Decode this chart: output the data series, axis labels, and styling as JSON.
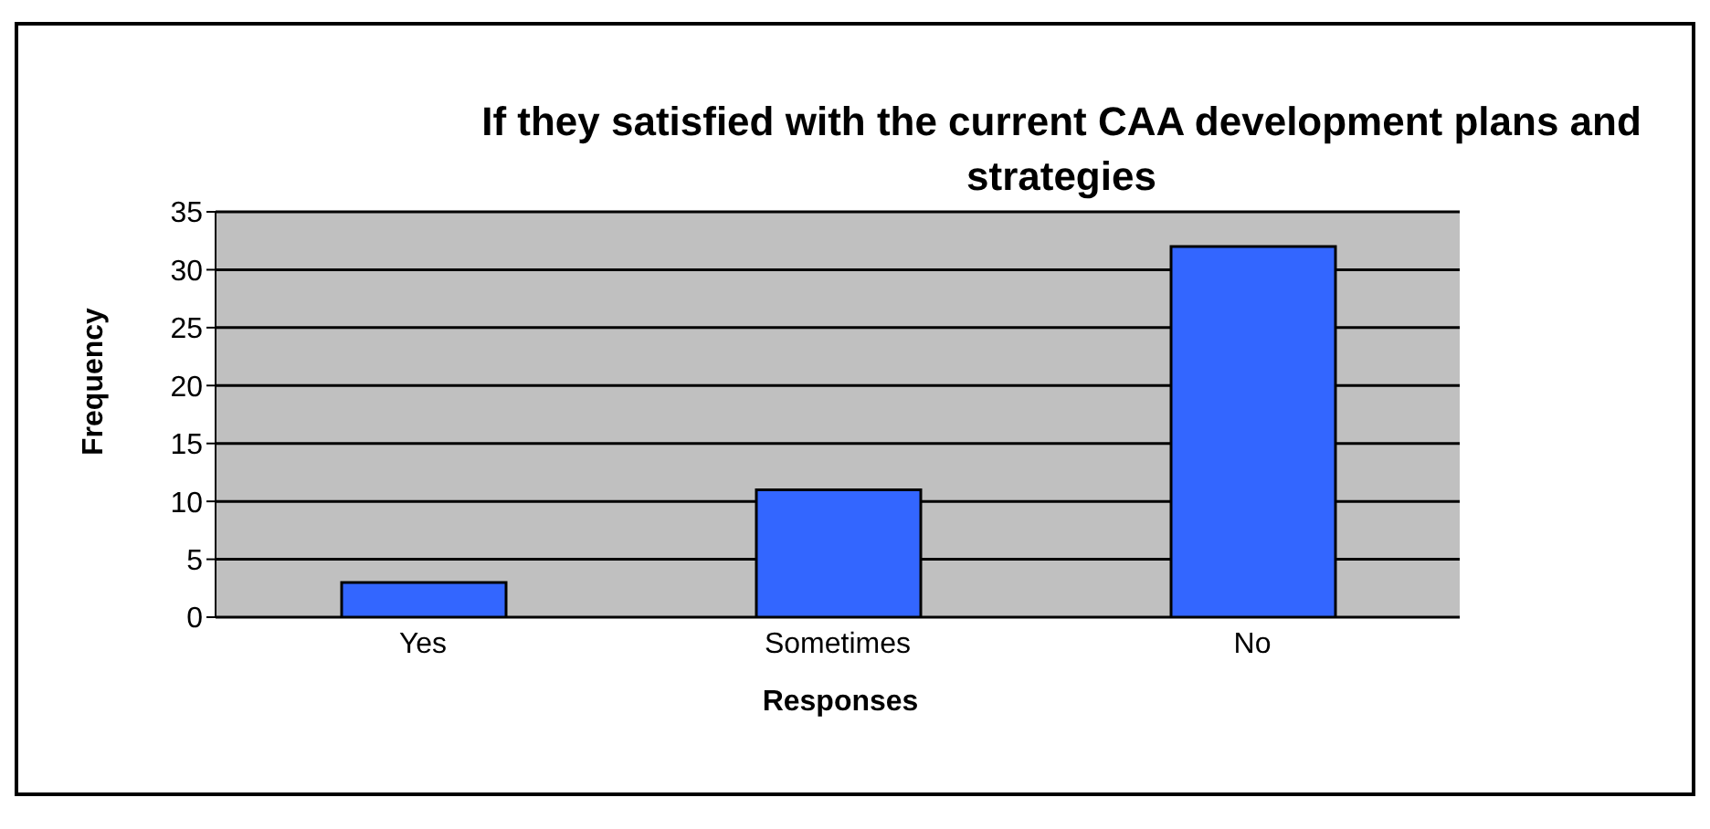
{
  "chart_data": {
    "type": "bar",
    "title": "If they satisfied with the current CAA development plans and strategies",
    "xlabel": "Responses",
    "ylabel": "Frequency",
    "categories": [
      "Yes",
      "Sometimes",
      "No"
    ],
    "values": [
      3,
      11,
      32
    ],
    "color": "#3366ff",
    "ylim": [
      0,
      35
    ],
    "yticks": [
      0,
      5,
      10,
      15,
      20,
      25,
      30,
      35
    ],
    "grid": "y"
  }
}
